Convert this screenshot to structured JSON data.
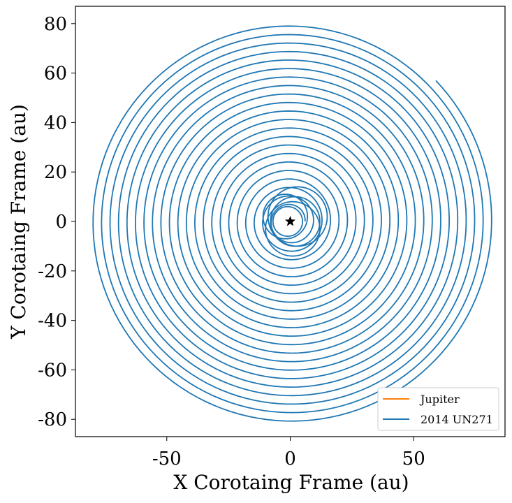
{
  "chart_data": {
    "type": "line",
    "xlabel": "X Corotaing Frame (au)",
    "ylabel": "Y Corotaing Frame (au)",
    "xlim": [
      -87,
      87
    ],
    "ylim": [
      -87,
      87
    ],
    "x_ticks": [
      -50,
      0,
      50
    ],
    "x_tick_labels": [
      "-50",
      "0",
      "50"
    ],
    "y_ticks": [
      -80,
      -60,
      -40,
      -20,
      0,
      20,
      40,
      60,
      80
    ],
    "y_tick_labels": [
      "-80",
      "-60",
      "-40",
      "-20",
      "0",
      "20",
      "40",
      "60",
      "80"
    ],
    "grid": false,
    "legend_position": "bottom-right",
    "series": [
      {
        "name": "Jupiter",
        "color": "#ff7f0e",
        "description_free": true,
        "x": [
          0,
          0
        ],
        "y": [
          0,
          0
        ]
      },
      {
        "name": "2014 UN271",
        "color": "#1f77b4",
        "spiral": {
          "start_angle_deg": 0,
          "end_angle_deg": 7964,
          "start_radius": 6,
          "end_radius": 82,
          "inner_loops": [
            {
              "cx": 2,
              "cy": 0,
              "r": 10
            },
            {
              "cx": -2,
              "cy": 2,
              "r": 9
            },
            {
              "cx": 1,
              "cy": -3,
              "r": 11
            },
            {
              "cx": 3,
              "cy": 2,
              "r": 12
            },
            {
              "cx": -1,
              "cy": 0,
              "r": 6
            }
          ]
        }
      }
    ],
    "marker": {
      "type": "star",
      "x": 0,
      "y": 0,
      "color": "#000000"
    }
  }
}
